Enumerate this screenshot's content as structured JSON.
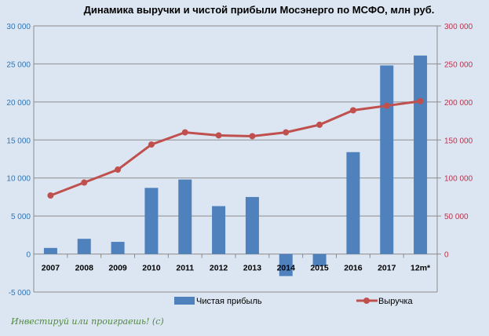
{
  "chart_data": {
    "type": "bar+line",
    "title": "Динамика выручки и чистой прибыли Мосэнерго по МСФО, млн руб.",
    "categories": [
      "2007",
      "2008",
      "2009",
      "2010",
      "2011",
      "2012",
      "2013",
      "2014",
      "2015",
      "2016",
      "2017",
      "12m*"
    ],
    "series": [
      {
        "name": "Чистая прибыль",
        "type": "bar",
        "axis": "left",
        "color": "#4f81bd",
        "values": [
          800,
          2000,
          1600,
          8700,
          9800,
          6300,
          7500,
          -2900,
          -1600,
          13400,
          24800,
          26100
        ]
      },
      {
        "name": "Выручка",
        "type": "line",
        "axis": "right",
        "color": "#c0504d",
        "values": [
          77000,
          94000,
          111000,
          144000,
          160000,
          156000,
          155000,
          160000,
          170000,
          189000,
          195000,
          201000
        ]
      }
    ],
    "left_axis": {
      "ylim": [
        -5000,
        30000
      ],
      "ticks": [
        "30 000",
        "25 000",
        "20 000",
        "15 000",
        "10 000",
        "5 000",
        "0",
        "-5 000"
      ],
      "tick_values": [
        30000,
        25000,
        20000,
        15000,
        10000,
        5000,
        0,
        -5000
      ]
    },
    "right_axis": {
      "ylim": [
        -50000,
        300000
      ],
      "ticks": [
        "300 000",
        "250 000",
        "200 000",
        "150 000",
        "100 000",
        "50 000",
        "0"
      ],
      "tick_values": [
        300000,
        250000,
        200000,
        150000,
        100000,
        50000,
        0
      ]
    },
    "grid": true,
    "legend_position": "bottom"
  },
  "watermark": "Инвестируй или проиграешь! (с)"
}
